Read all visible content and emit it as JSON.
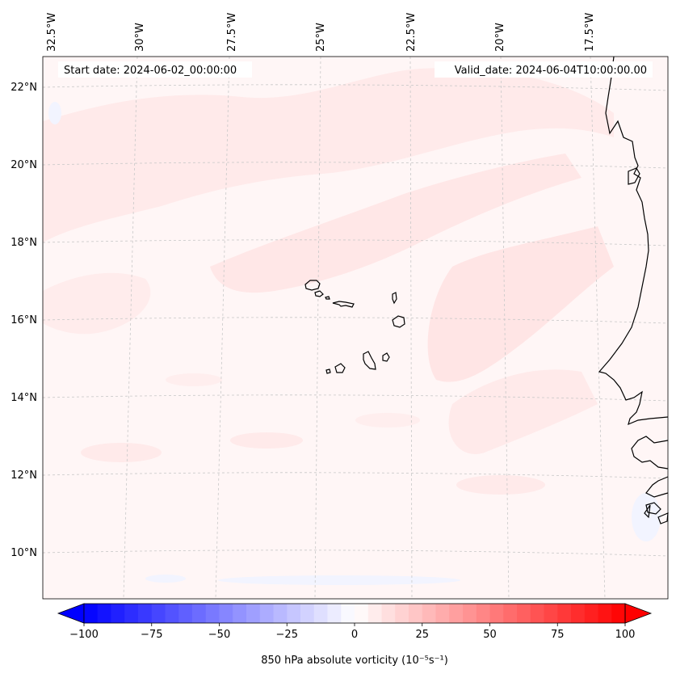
{
  "header": {
    "start_date": "Start date: 2024-06-02_00:00:00",
    "valid_date": "Valid_date: 2024-06-04T10:00:00.00"
  },
  "map": {
    "lon_ticks": [
      "32.5°W",
      "30°W",
      "27.5°W",
      "25°W",
      "22.5°W",
      "20°W",
      "17.5°W"
    ],
    "lat_ticks": [
      "22°N",
      "20°N",
      "18°N",
      "16°N",
      "14°N",
      "12°N",
      "10°N"
    ],
    "islands": [
      "Santo Antão",
      "São Vicente",
      "Santa Luzia",
      "São Nicolau",
      "Sal",
      "Boa Vista",
      "Maio",
      "Santiago",
      "Fogo",
      "Brava"
    ]
  },
  "colorbar": {
    "label": "850 hPa absolute vorticity (10⁻⁵s⁻¹)",
    "ticks": [
      "−100",
      "−75",
      "−50",
      "−25",
      "0",
      "25",
      "50",
      "75",
      "100"
    ],
    "min": -100,
    "max": 100,
    "levels": 40,
    "color_min": "#0000ff",
    "color_mid": "#ffffff",
    "color_max": "#ff0000"
  },
  "colors": {
    "background_field": "#fff6f6",
    "positive_patch": "#ffe6e6",
    "negative_patch": "#eef2ff",
    "coastline": "#000000",
    "gridline": "#c8c8c8"
  }
}
